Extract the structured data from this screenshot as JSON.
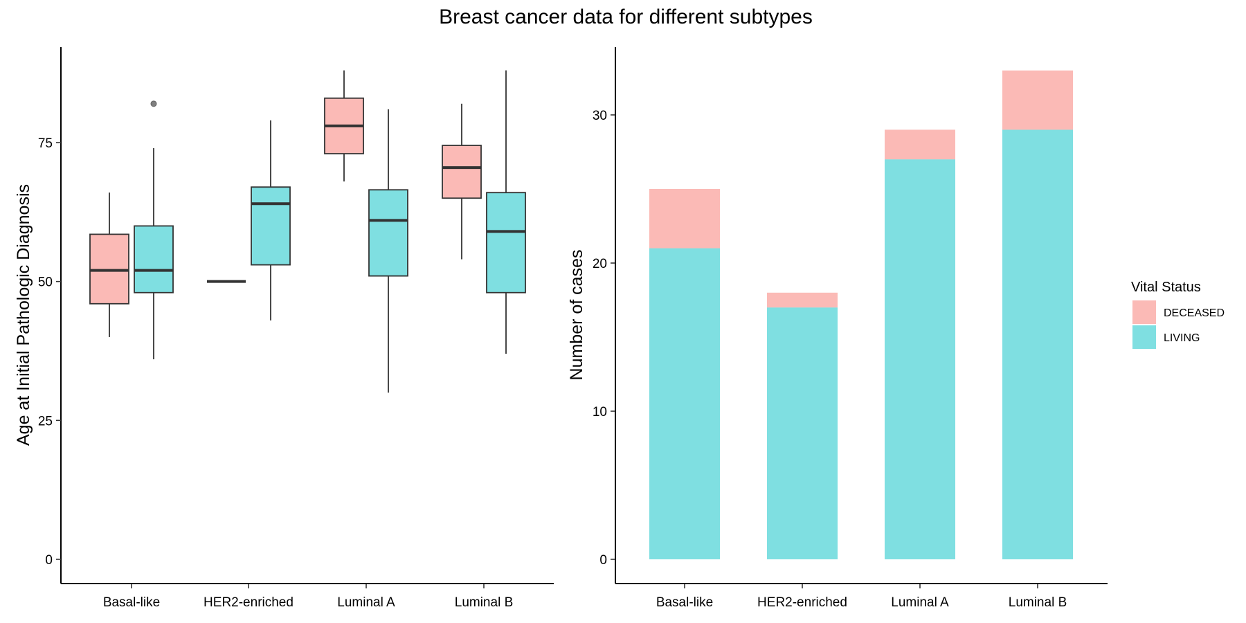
{
  "title": "Breast cancer data for different subtypes",
  "colors": {
    "DECEASED": "#F8766D",
    "LIVING": "#00BFC4"
  },
  "legend": {
    "title": "Vital Status",
    "items": [
      "DECEASED",
      "LIVING"
    ]
  },
  "chart_data": [
    {
      "type": "box",
      "categories": [
        "Basal-like",
        "HER2-enriched",
        "Luminal A",
        "Luminal B"
      ],
      "xlabel": "",
      "ylabel": "Age at Initial Pathologic Diagnosis",
      "ylim": [
        0,
        90
      ],
      "yticks": [
        0,
        25,
        50,
        75
      ],
      "grid": false,
      "series": [
        {
          "name": "DECEASED",
          "boxes": [
            {
              "category": "Basal-like",
              "low": 40,
              "q1": 46,
              "median": 52,
              "q3": 58.5,
              "high": 66,
              "outliers": []
            },
            {
              "category": "HER2-enriched",
              "low": 50,
              "q1": 50,
              "median": 50,
              "q3": 50,
              "high": 50,
              "outliers": []
            },
            {
              "category": "Luminal A",
              "low": 68,
              "q1": 73,
              "median": 78,
              "q3": 83,
              "high": 88,
              "outliers": []
            },
            {
              "category": "Luminal B",
              "low": 54,
              "q1": 65,
              "median": 70.5,
              "q3": 74.5,
              "high": 82,
              "outliers": []
            }
          ]
        },
        {
          "name": "LIVING",
          "boxes": [
            {
              "category": "Basal-like",
              "low": 36,
              "q1": 48,
              "median": 52,
              "q3": 60,
              "high": 74,
              "outliers": [
                82
              ]
            },
            {
              "category": "HER2-enriched",
              "low": 43,
              "q1": 53,
              "median": 64,
              "q3": 67,
              "high": 79,
              "outliers": []
            },
            {
              "category": "Luminal A",
              "low": 30,
              "q1": 51,
              "median": 61,
              "q3": 66.5,
              "high": 81,
              "outliers": []
            },
            {
              "category": "Luminal B",
              "low": 37,
              "q1": 48,
              "median": 59,
              "q3": 66,
              "high": 88,
              "outliers": []
            }
          ]
        }
      ]
    },
    {
      "type": "bar",
      "stacked": true,
      "categories": [
        "Basal-like",
        "HER2-enriched",
        "Luminal A",
        "Luminal B"
      ],
      "xlabel": "",
      "ylabel": "Number of cases",
      "ylim": [
        0,
        34
      ],
      "yticks": [
        0,
        10,
        20,
        30
      ],
      "grid": false,
      "legend_position": "right",
      "series": [
        {
          "name": "LIVING",
          "values": [
            21,
            17,
            27,
            29
          ]
        },
        {
          "name": "DECEASED",
          "values": [
            4,
            1,
            2,
            4
          ]
        }
      ]
    }
  ]
}
